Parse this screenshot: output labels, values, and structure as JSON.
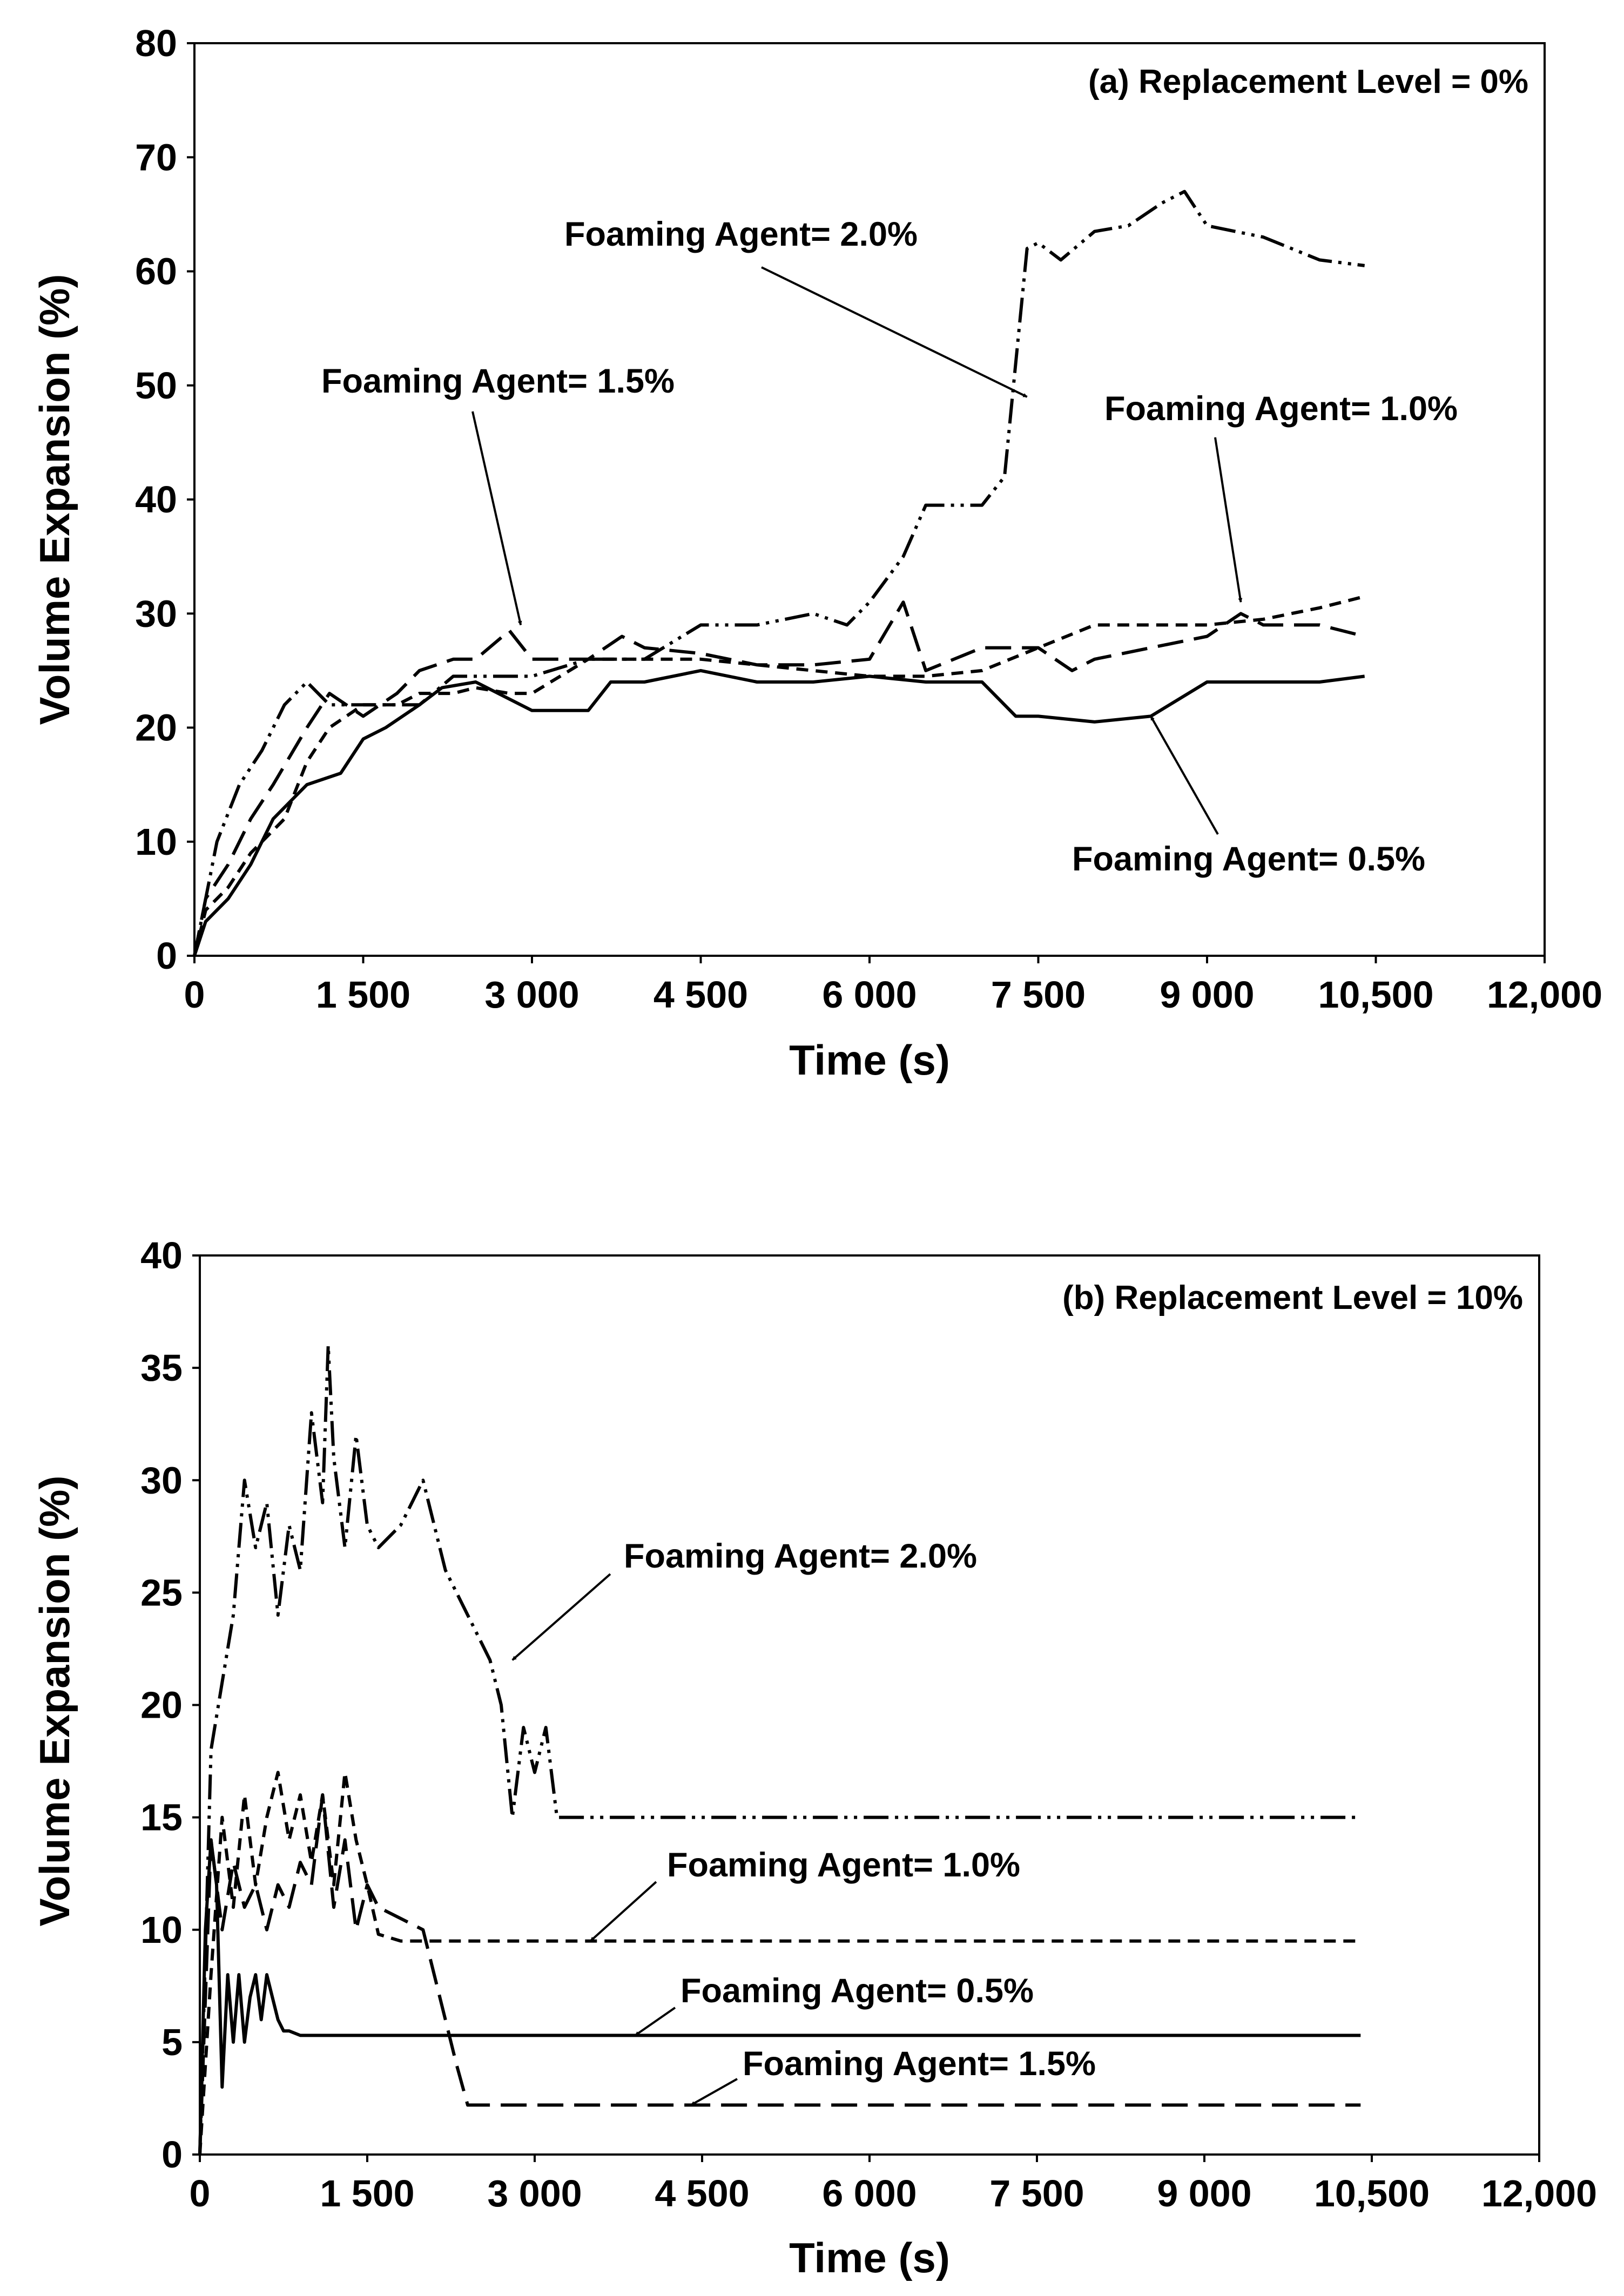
{
  "chart_data": [
    {
      "type": "line",
      "title": "(a) Replacement Level = 0%",
      "xlabel": "Time (s)",
      "ylabel": "Volume Expansion (%)",
      "xlim": [
        0,
        12000
      ],
      "ylim": [
        0,
        80
      ],
      "xtick_values": [
        0,
        1500,
        3000,
        4500,
        6000,
        7500,
        9000,
        10500,
        12000
      ],
      "xtick_labels": [
        "0",
        "1 500",
        "3 000",
        "4 500",
        "6 000",
        "7 500",
        "9 000",
        "10,500",
        "12,000"
      ],
      "ytick_values": [
        0,
        10,
        20,
        30,
        40,
        50,
        60,
        70,
        80
      ],
      "ytick_labels": [
        "0",
        "10",
        "20",
        "30",
        "40",
        "50",
        "60",
        "70",
        "80"
      ],
      "series": [
        {
          "name": "Foaming Agent= 0.5%",
          "dash": "solid",
          "x": [
            0,
            100,
            300,
            500,
            700,
            1000,
            1300,
            1500,
            1700,
            2000,
            2200,
            2500,
            3000,
            3500,
            3700,
            4000,
            4500,
            5000,
            5500,
            6000,
            6500,
            7000,
            7300,
            7500,
            8000,
            8500,
            9000,
            9500,
            10000,
            10400
          ],
          "y": [
            0,
            3,
            5,
            8,
            12,
            15,
            16,
            19,
            20,
            22,
            23.5,
            24,
            21.5,
            21.5,
            24,
            24,
            25,
            24,
            24,
            24.5,
            24,
            24,
            21,
            21,
            20.5,
            21,
            24,
            24,
            24,
            24.5
          ]
        },
        {
          "name": "Foaming Agent= 1.0%",
          "dash": "medium-dash",
          "x": [
            0,
            100,
            300,
            500,
            800,
            1000,
            1200,
            1500,
            1800,
            2000,
            2300,
            2500,
            2800,
            3000,
            3500,
            4000,
            4500,
            5000,
            5500,
            6000,
            6500,
            7000,
            7500,
            8000,
            8500,
            9000,
            9500,
            10000,
            10400
          ],
          "y": [
            0,
            4,
            6,
            9,
            12,
            17,
            20,
            22,
            22,
            23,
            23,
            23.5,
            23,
            23,
            26,
            26,
            26,
            25.5,
            25,
            24.5,
            24.5,
            25,
            27,
            29,
            29,
            29,
            29.5,
            30.5,
            31.5
          ]
        },
        {
          "name": "Foaming Agent= 1.5%",
          "dash": "long-dash",
          "x": [
            0,
            100,
            300,
            500,
            700,
            1000,
            1200,
            1500,
            1800,
            2000,
            2300,
            2500,
            2800,
            3000,
            3200,
            3500,
            3800,
            4000,
            4500,
            5000,
            5500,
            6000,
            6300,
            6500,
            7000,
            7500,
            7800,
            8000,
            8500,
            9000,
            9300,
            9500,
            10000,
            10400
          ],
          "y": [
            0,
            5,
            8,
            12,
            15,
            20,
            23,
            21,
            23,
            25,
            26,
            26,
            28.5,
            26,
            26,
            26,
            28,
            27,
            26.5,
            25.5,
            25.5,
            26,
            31,
            25,
            27,
            27,
            25,
            26,
            27,
            28,
            30,
            29,
            29,
            28
          ]
        },
        {
          "name": "Foaming Agent= 2.0%",
          "dash": "dash-dot-dot",
          "x": [
            0,
            100,
            200,
            400,
            600,
            800,
            1000,
            1200,
            1400,
            1700,
            2000,
            2300,
            2600,
            3000,
            3500,
            4000,
            4500,
            5000,
            5500,
            5800,
            6000,
            6300,
            6500,
            7000,
            7200,
            7300,
            7400,
            7500,
            7700,
            8000,
            8300,
            8600,
            8800,
            9000,
            9500,
            10000,
            10400
          ],
          "y": [
            0,
            5,
            10,
            15,
            18,
            22,
            24,
            22,
            22,
            22,
            22,
            24.5,
            24.5,
            24.5,
            26,
            26,
            29,
            29,
            30,
            29,
            31,
            35,
            39.5,
            39.5,
            42,
            52,
            62,
            62.5,
            61,
            63.5,
            64,
            66,
            67,
            64,
            63,
            61,
            60.5
          ]
        }
      ],
      "annotations": [
        {
          "text": "Foaming Agent= 2.0%",
          "target": [
            7400,
            49
          ]
        },
        {
          "text": "Foaming Agent= 1.5%",
          "target": [
            2900,
            29
          ]
        },
        {
          "text": "Foaming Agent= 1.0%",
          "target": [
            9300,
            31
          ]
        },
        {
          "text": "Foaming Agent= 0.5%",
          "target": [
            8500,
            21
          ]
        }
      ],
      "legend": "none",
      "grid": false
    },
    {
      "type": "line",
      "title": "(b) Replacement Level = 10%",
      "xlabel": "Time (s)",
      "ylabel": "Volume Expansion (%)",
      "xlim": [
        0,
        12000
      ],
      "ylim": [
        0,
        40
      ],
      "xtick_values": [
        0,
        1500,
        3000,
        4500,
        6000,
        7500,
        9000,
        10500,
        12000
      ],
      "xtick_labels": [
        "0",
        "1 500",
        "3 000",
        "4 500",
        "6 000",
        "7 500",
        "9 000",
        "10,500",
        "12,000"
      ],
      "ytick_values": [
        0,
        5,
        10,
        15,
        20,
        25,
        30,
        35,
        40
      ],
      "ytick_labels": [
        "0",
        "5",
        "10",
        "15",
        "20",
        "25",
        "30",
        "35",
        "40"
      ],
      "series": [
        {
          "name": "Foaming Agent= 0.5%",
          "dash": "solid",
          "x": [
            0,
            50,
            100,
            150,
            200,
            250,
            300,
            350,
            400,
            450,
            500,
            550,
            600,
            650,
            700,
            750,
            800,
            900,
            10400
          ],
          "y": [
            0,
            10,
            14,
            12,
            3,
            8,
            5,
            8,
            5,
            7,
            8,
            6,
            8,
            7,
            6,
            5.5,
            5.5,
            5.3,
            5.3
          ]
        },
        {
          "name": "Foaming Agent= 1.0%",
          "dash": "medium-dash",
          "x": [
            0,
            100,
            200,
            300,
            400,
            500,
            600,
            700,
            800,
            900,
            1000,
            1100,
            1200,
            1300,
            1400,
            1500,
            1600,
            1800,
            10400
          ],
          "y": [
            0,
            8,
            15,
            11,
            16,
            12,
            15,
            17,
            14,
            16,
            13,
            16,
            12,
            17,
            14,
            12,
            9.8,
            9.5,
            9.5
          ]
        },
        {
          "name": "Foaming Agent= 1.5%",
          "dash": "long-dash",
          "x": [
            0,
            100,
            200,
            300,
            400,
            500,
            600,
            700,
            800,
            900,
            1000,
            1100,
            1200,
            1300,
            1400,
            1500,
            1600,
            1800,
            2000,
            2100,
            2200,
            2300,
            2400,
            10400
          ],
          "y": [
            0,
            14,
            10,
            13,
            11,
            12,
            10,
            12,
            11,
            13,
            12,
            16,
            11,
            14,
            10,
            12,
            11,
            10.5,
            10,
            8,
            6,
            4,
            2.2,
            2.2
          ]
        },
        {
          "name": "Foaming Agent= 2.0%",
          "dash": "dash-dot-dot",
          "x": [
            0,
            100,
            200,
            300,
            400,
            500,
            600,
            700,
            800,
            900,
            1000,
            1100,
            1150,
            1200,
            1300,
            1400,
            1500,
            1600,
            1800,
            2000,
            2200,
            2400,
            2600,
            2700,
            2800,
            2900,
            3000,
            3100,
            3200,
            3300,
            10400
          ],
          "y": [
            0,
            18,
            21,
            24,
            30,
            27,
            29,
            24,
            28,
            26,
            33,
            29,
            36,
            31,
            27,
            32,
            28,
            27,
            28,
            30,
            26,
            24,
            22,
            20,
            15,
            19,
            17,
            19,
            15,
            15,
            15
          ]
        }
      ],
      "annotations": [
        {
          "text": "Foaming Agent= 2.0%",
          "target": [
            2800,
            22
          ]
        },
        {
          "text": "Foaming Agent= 1.0%",
          "target": [
            3500,
            9.5
          ]
        },
        {
          "text": "Foaming Agent= 0.5%",
          "target": [
            3900,
            5.3
          ]
        },
        {
          "text": "Foaming Agent= 1.5%",
          "target": [
            4400,
            2.2
          ]
        }
      ],
      "legend": "none",
      "grid": false
    }
  ]
}
